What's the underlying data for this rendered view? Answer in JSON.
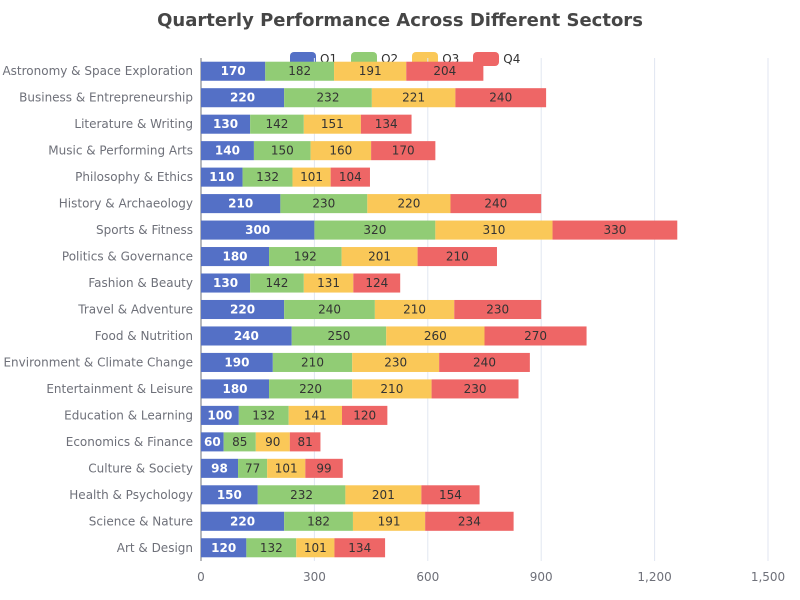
{
  "chart_data": {
    "type": "bar",
    "orientation": "horizontal",
    "stacked": true,
    "title": "Quarterly Performance Across Different Sectors",
    "categories": [
      "Art & Design",
      "Science & Nature",
      "Health & Psychology",
      "Culture & Society",
      "Economics & Finance",
      "Education & Learning",
      "Entertainment & Leisure",
      "Environment & Climate Change",
      "Food & Nutrition",
      "Travel & Adventure",
      "Fashion & Beauty",
      "Politics & Governance",
      "Sports & Fitness",
      "History & Archaeology",
      "Philosophy & Ethics",
      "Music & Performing Arts",
      "Literature & Writing",
      "Business & Entrepreneurship",
      "Astronomy & Space Exploration"
    ],
    "series": [
      {
        "name": "Q1",
        "color": "#5470c6",
        "values": [
          120,
          220,
          150,
          98,
          60,
          100,
          180,
          190,
          240,
          220,
          130,
          180,
          300,
          210,
          110,
          140,
          130,
          220,
          170
        ]
      },
      {
        "name": "Q2",
        "color": "#91cc75",
        "values": [
          132,
          182,
          232,
          77,
          85,
          132,
          220,
          210,
          250,
          240,
          142,
          192,
          320,
          230,
          132,
          150,
          142,
          232,
          182
        ]
      },
      {
        "name": "Q3",
        "color": "#fac858",
        "values": [
          101,
          191,
          201,
          101,
          90,
          141,
          210,
          230,
          260,
          210,
          131,
          201,
          310,
          220,
          101,
          160,
          151,
          221,
          191
        ]
      },
      {
        "name": "Q4",
        "color": "#ee6666",
        "values": [
          134,
          234,
          154,
          99,
          81,
          120,
          230,
          240,
          270,
          230,
          124,
          210,
          330,
          240,
          104,
          170,
          134,
          240,
          204
        ]
      }
    ],
    "xlim": [
      0,
      1500
    ],
    "xticks": [
      0,
      300,
      600,
      900,
      1200,
      1500
    ],
    "xtick_labels": [
      "0",
      "300",
      "600",
      "900",
      "1,200",
      "1,500"
    ],
    "grid": true,
    "legend_position": "top-center"
  }
}
